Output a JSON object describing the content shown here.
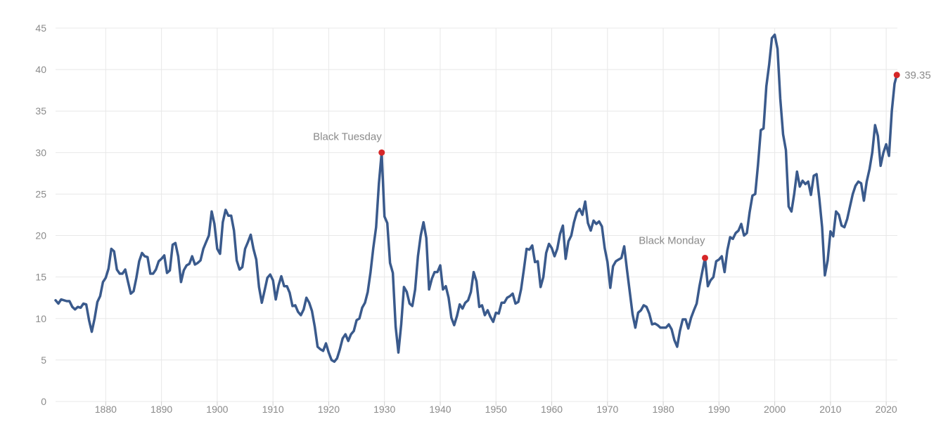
{
  "chart_data": {
    "type": "line",
    "title": "",
    "xlabel": "",
    "ylabel": "",
    "xlim": [
      1871,
      2022
    ],
    "ylim": [
      0,
      45
    ],
    "x_ticks": [
      1880,
      1890,
      1900,
      1910,
      1920,
      1930,
      1940,
      1950,
      1960,
      1970,
      1980,
      1990,
      2000,
      2010,
      2020
    ],
    "y_ticks": [
      0,
      5,
      10,
      15,
      20,
      25,
      30,
      35,
      40,
      45
    ],
    "grid": true,
    "colors": {
      "line": "#3a5a8c",
      "marker": "#d62728",
      "grid": "#e8e8e8",
      "text": "#8a8a8a"
    },
    "series": [
      {
        "points": [
          [
            1871.0,
            12.2
          ],
          [
            1871.5,
            11.8
          ],
          [
            1872.0,
            12.3
          ],
          [
            1873.0,
            12.1
          ],
          [
            1873.5,
            12.1
          ],
          [
            1874.0,
            11.4
          ],
          [
            1874.5,
            11.1
          ],
          [
            1875.0,
            11.4
          ],
          [
            1875.5,
            11.3
          ],
          [
            1876.0,
            11.8
          ],
          [
            1876.5,
            11.7
          ],
          [
            1877.0,
            9.8
          ],
          [
            1877.5,
            8.4
          ],
          [
            1878.0,
            10.0
          ],
          [
            1878.5,
            12.0
          ],
          [
            1879.0,
            12.7
          ],
          [
            1879.5,
            14.4
          ],
          [
            1880.0,
            14.9
          ],
          [
            1880.5,
            16.0
          ],
          [
            1881.0,
            18.4
          ],
          [
            1881.5,
            18.1
          ],
          [
            1882.0,
            15.9
          ],
          [
            1882.5,
            15.4
          ],
          [
            1883.0,
            15.4
          ],
          [
            1883.5,
            15.9
          ],
          [
            1884.0,
            14.4
          ],
          [
            1884.5,
            13.0
          ],
          [
            1885.0,
            13.3
          ],
          [
            1885.5,
            14.9
          ],
          [
            1886.0,
            16.9
          ],
          [
            1886.5,
            17.9
          ],
          [
            1887.0,
            17.5
          ],
          [
            1887.5,
            17.4
          ],
          [
            1888.0,
            15.4
          ],
          [
            1888.5,
            15.4
          ],
          [
            1889.0,
            15.9
          ],
          [
            1889.5,
            16.9
          ],
          [
            1890.0,
            17.2
          ],
          [
            1890.5,
            17.6
          ],
          [
            1891.0,
            15.5
          ],
          [
            1891.5,
            15.8
          ],
          [
            1892.0,
            18.9
          ],
          [
            1892.5,
            19.1
          ],
          [
            1893.0,
            17.5
          ],
          [
            1893.5,
            14.4
          ],
          [
            1894.0,
            15.8
          ],
          [
            1894.5,
            16.4
          ],
          [
            1895.0,
            16.6
          ],
          [
            1895.5,
            17.5
          ],
          [
            1896.0,
            16.5
          ],
          [
            1896.5,
            16.7
          ],
          [
            1897.0,
            17.0
          ],
          [
            1897.5,
            18.4
          ],
          [
            1898.0,
            19.2
          ],
          [
            1898.5,
            20.0
          ],
          [
            1899.0,
            22.9
          ],
          [
            1899.5,
            21.4
          ],
          [
            1900.0,
            18.4
          ],
          [
            1900.5,
            17.8
          ],
          [
            1901.0,
            21.6
          ],
          [
            1901.5,
            23.1
          ],
          [
            1902.0,
            22.4
          ],
          [
            1902.5,
            22.4
          ],
          [
            1903.0,
            20.6
          ],
          [
            1903.5,
            17.0
          ],
          [
            1904.0,
            15.9
          ],
          [
            1904.5,
            16.2
          ],
          [
            1905.0,
            18.4
          ],
          [
            1905.5,
            19.2
          ],
          [
            1906.0,
            20.1
          ],
          [
            1906.5,
            18.4
          ],
          [
            1907.0,
            17.1
          ],
          [
            1907.5,
            13.8
          ],
          [
            1908.0,
            11.9
          ],
          [
            1908.5,
            13.4
          ],
          [
            1909.0,
            14.9
          ],
          [
            1909.5,
            15.3
          ],
          [
            1910.0,
            14.6
          ],
          [
            1910.5,
            12.3
          ],
          [
            1911.0,
            14.0
          ],
          [
            1911.5,
            15.1
          ],
          [
            1912.0,
            13.9
          ],
          [
            1912.5,
            13.9
          ],
          [
            1913.0,
            13.1
          ],
          [
            1913.5,
            11.5
          ],
          [
            1914.0,
            11.6
          ],
          [
            1914.5,
            10.8
          ],
          [
            1915.0,
            10.4
          ],
          [
            1915.5,
            11.1
          ],
          [
            1916.0,
            12.5
          ],
          [
            1916.5,
            11.9
          ],
          [
            1917.0,
            10.9
          ],
          [
            1917.5,
            9.0
          ],
          [
            1918.0,
            6.6
          ],
          [
            1918.5,
            6.3
          ],
          [
            1919.0,
            6.1
          ],
          [
            1919.5,
            7.0
          ],
          [
            1920.0,
            5.9
          ],
          [
            1920.5,
            5.0
          ],
          [
            1921.0,
            4.8
          ],
          [
            1921.5,
            5.2
          ],
          [
            1922.0,
            6.3
          ],
          [
            1922.5,
            7.6
          ],
          [
            1923.0,
            8.1
          ],
          [
            1923.5,
            7.3
          ],
          [
            1924.0,
            8.1
          ],
          [
            1924.5,
            8.5
          ],
          [
            1925.0,
            9.8
          ],
          [
            1925.5,
            10.0
          ],
          [
            1926.0,
            11.3
          ],
          [
            1926.5,
            11.9
          ],
          [
            1927.0,
            13.2
          ],
          [
            1927.5,
            15.6
          ],
          [
            1928.0,
            18.5
          ],
          [
            1928.5,
            21.0
          ],
          [
            1929.0,
            26.3
          ],
          [
            1929.5,
            30.0
          ],
          [
            1930.0,
            22.3
          ],
          [
            1930.5,
            21.5
          ],
          [
            1931.0,
            16.7
          ],
          [
            1931.5,
            15.5
          ],
          [
            1932.0,
            9.0
          ],
          [
            1932.5,
            5.9
          ],
          [
            1933.0,
            9.3
          ],
          [
            1933.5,
            13.8
          ],
          [
            1934.0,
            13.2
          ],
          [
            1934.5,
            11.8
          ],
          [
            1935.0,
            11.5
          ],
          [
            1935.5,
            13.5
          ],
          [
            1936.0,
            17.5
          ],
          [
            1936.5,
            20.0
          ],
          [
            1937.0,
            21.6
          ],
          [
            1937.5,
            19.7
          ],
          [
            1938.0,
            13.5
          ],
          [
            1938.5,
            14.8
          ],
          [
            1939.0,
            15.6
          ],
          [
            1939.5,
            15.6
          ],
          [
            1940.0,
            16.4
          ],
          [
            1940.5,
            13.5
          ],
          [
            1941.0,
            13.9
          ],
          [
            1941.5,
            12.5
          ],
          [
            1942.0,
            10.1
          ],
          [
            1942.5,
            9.2
          ],
          [
            1943.0,
            10.3
          ],
          [
            1943.5,
            11.7
          ],
          [
            1944.0,
            11.2
          ],
          [
            1944.5,
            11.9
          ],
          [
            1945.0,
            12.2
          ],
          [
            1945.5,
            13.2
          ],
          [
            1946.0,
            15.6
          ],
          [
            1946.5,
            14.5
          ],
          [
            1947.0,
            11.4
          ],
          [
            1947.5,
            11.6
          ],
          [
            1948.0,
            10.4
          ],
          [
            1948.5,
            11.0
          ],
          [
            1949.0,
            10.2
          ],
          [
            1949.5,
            9.6
          ],
          [
            1950.0,
            10.7
          ],
          [
            1950.5,
            10.6
          ],
          [
            1951.0,
            11.9
          ],
          [
            1951.5,
            11.9
          ],
          [
            1952.0,
            12.5
          ],
          [
            1952.5,
            12.7
          ],
          [
            1953.0,
            13.0
          ],
          [
            1953.5,
            11.8
          ],
          [
            1954.0,
            12.0
          ],
          [
            1954.5,
            13.5
          ],
          [
            1955.0,
            15.9
          ],
          [
            1955.5,
            18.4
          ],
          [
            1956.0,
            18.3
          ],
          [
            1956.5,
            18.8
          ],
          [
            1957.0,
            16.8
          ],
          [
            1957.5,
            16.9
          ],
          [
            1958.0,
            13.8
          ],
          [
            1958.5,
            15.0
          ],
          [
            1959.0,
            17.9
          ],
          [
            1959.5,
            19.0
          ],
          [
            1960.0,
            18.5
          ],
          [
            1960.5,
            17.5
          ],
          [
            1961.0,
            18.4
          ],
          [
            1961.5,
            20.2
          ],
          [
            1962.0,
            21.2
          ],
          [
            1962.5,
            17.2
          ],
          [
            1963.0,
            19.3
          ],
          [
            1963.5,
            20.0
          ],
          [
            1964.0,
            21.6
          ],
          [
            1964.5,
            22.8
          ],
          [
            1965.0,
            23.2
          ],
          [
            1965.5,
            22.5
          ],
          [
            1966.0,
            24.1
          ],
          [
            1966.5,
            21.5
          ],
          [
            1967.0,
            20.6
          ],
          [
            1967.5,
            21.8
          ],
          [
            1968.0,
            21.4
          ],
          [
            1968.5,
            21.7
          ],
          [
            1969.0,
            21.1
          ],
          [
            1969.5,
            18.5
          ],
          [
            1970.0,
            16.8
          ],
          [
            1970.5,
            13.7
          ],
          [
            1971.0,
            16.3
          ],
          [
            1971.5,
            16.9
          ],
          [
            1972.0,
            17.1
          ],
          [
            1972.5,
            17.3
          ],
          [
            1973.0,
            18.7
          ],
          [
            1973.5,
            15.9
          ],
          [
            1974.0,
            13.2
          ],
          [
            1974.5,
            10.5
          ],
          [
            1975.0,
            8.9
          ],
          [
            1975.5,
            10.7
          ],
          [
            1976.0,
            11.0
          ],
          [
            1976.5,
            11.6
          ],
          [
            1977.0,
            11.4
          ],
          [
            1977.5,
            10.6
          ],
          [
            1978.0,
            9.3
          ],
          [
            1978.5,
            9.4
          ],
          [
            1979.0,
            9.2
          ],
          [
            1979.5,
            8.9
          ],
          [
            1980.0,
            8.9
          ],
          [
            1980.5,
            8.9
          ],
          [
            1981.0,
            9.3
          ],
          [
            1981.5,
            8.7
          ],
          [
            1982.0,
            7.4
          ],
          [
            1982.5,
            6.6
          ],
          [
            1983.0,
            8.5
          ],
          [
            1983.5,
            9.9
          ],
          [
            1984.0,
            9.9
          ],
          [
            1984.5,
            8.8
          ],
          [
            1985.0,
            10.1
          ],
          [
            1985.5,
            11.0
          ],
          [
            1986.0,
            11.8
          ],
          [
            1986.5,
            13.9
          ],
          [
            1987.0,
            15.6
          ],
          [
            1987.5,
            17.3
          ],
          [
            1988.0,
            13.9
          ],
          [
            1988.5,
            14.6
          ],
          [
            1989.0,
            15.0
          ],
          [
            1989.5,
            16.9
          ],
          [
            1990.0,
            17.1
          ],
          [
            1990.5,
            17.5
          ],
          [
            1991.0,
            15.6
          ],
          [
            1991.5,
            18.2
          ],
          [
            1992.0,
            19.8
          ],
          [
            1992.5,
            19.6
          ],
          [
            1993.0,
            20.3
          ],
          [
            1993.5,
            20.6
          ],
          [
            1994.0,
            21.4
          ],
          [
            1994.5,
            20.0
          ],
          [
            1995.0,
            20.3
          ],
          [
            1995.5,
            22.8
          ],
          [
            1996.0,
            24.8
          ],
          [
            1996.5,
            25.0
          ],
          [
            1997.0,
            28.5
          ],
          [
            1997.5,
            32.7
          ],
          [
            1998.0,
            32.9
          ],
          [
            1998.5,
            38.0
          ],
          [
            1999.0,
            40.6
          ],
          [
            1999.5,
            43.8
          ],
          [
            2000.0,
            44.2
          ],
          [
            2000.5,
            42.5
          ],
          [
            2001.0,
            36.5
          ],
          [
            2001.5,
            32.2
          ],
          [
            2002.0,
            30.3
          ],
          [
            2002.5,
            23.5
          ],
          [
            2003.0,
            22.9
          ],
          [
            2003.5,
            25.0
          ],
          [
            2004.0,
            27.7
          ],
          [
            2004.5,
            25.9
          ],
          [
            2005.0,
            26.6
          ],
          [
            2005.5,
            26.2
          ],
          [
            2006.0,
            26.5
          ],
          [
            2006.5,
            24.9
          ],
          [
            2007.0,
            27.2
          ],
          [
            2007.5,
            27.4
          ],
          [
            2008.0,
            24.5
          ],
          [
            2008.5,
            21.0
          ],
          [
            2009.0,
            15.2
          ],
          [
            2009.5,
            17.0
          ],
          [
            2010.0,
            20.5
          ],
          [
            2010.5,
            19.9
          ],
          [
            2011.0,
            22.9
          ],
          [
            2011.5,
            22.5
          ],
          [
            2012.0,
            21.2
          ],
          [
            2012.5,
            21.0
          ],
          [
            2013.0,
            22.0
          ],
          [
            2013.5,
            23.5
          ],
          [
            2014.0,
            25.0
          ],
          [
            2014.5,
            26.0
          ],
          [
            2015.0,
            26.5
          ],
          [
            2015.5,
            26.3
          ],
          [
            2016.0,
            24.2
          ],
          [
            2016.5,
            26.5
          ],
          [
            2017.0,
            28.0
          ],
          [
            2017.5,
            30.0
          ],
          [
            2018.0,
            33.3
          ],
          [
            2018.5,
            32.0
          ],
          [
            2019.0,
            28.4
          ],
          [
            2019.5,
            30.0
          ],
          [
            2020.0,
            31.0
          ],
          [
            2020.5,
            29.6
          ],
          [
            2021.0,
            35.0
          ],
          [
            2021.5,
            38.3
          ],
          [
            2021.9,
            39.35
          ]
        ]
      }
    ],
    "annotations": [
      {
        "label": "Black Tuesday",
        "x": 1929.5,
        "y": 30.0,
        "position": "above"
      },
      {
        "label": "Black Monday",
        "x": 1987.5,
        "y": 17.3,
        "position": "above-left"
      },
      {
        "label": "39.35",
        "x": 2021.9,
        "y": 39.35,
        "position": "right"
      }
    ]
  }
}
